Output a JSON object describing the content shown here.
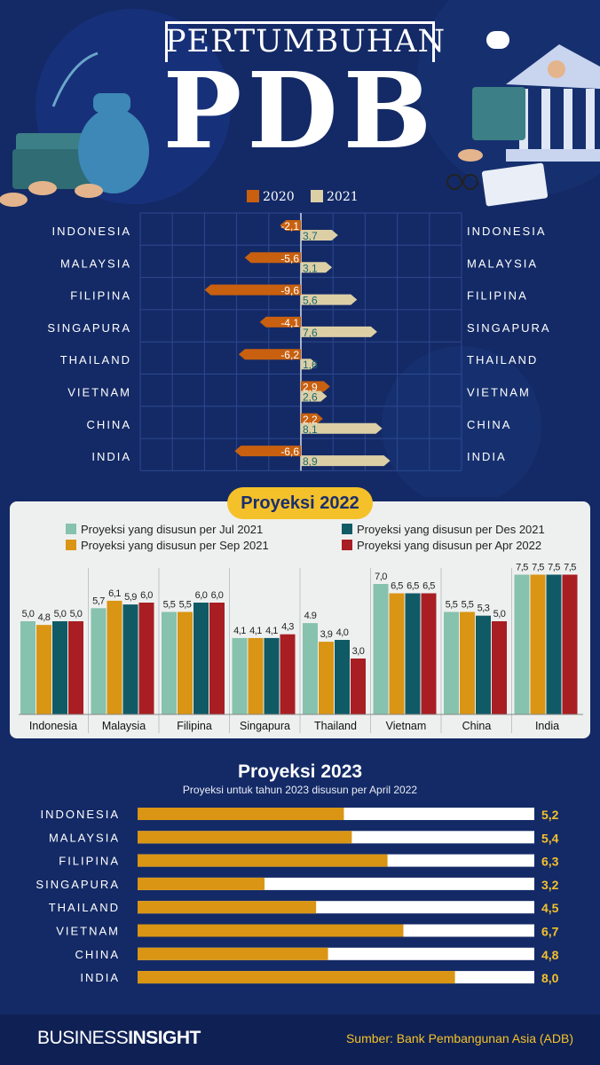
{
  "header": {
    "title_top": "PERTUMBUHAN",
    "title_big": "PDB"
  },
  "chart_data": [
    {
      "type": "bar",
      "orientation": "horizontal",
      "categories": [
        "INDONESIA",
        "MALAYSIA",
        "FILIPINA",
        "SINGAPURA",
        "THAILAND",
        "VIETNAM",
        "CHINA",
        "INDIA"
      ],
      "series": [
        {
          "name": "2020",
          "color": "#c8600f",
          "values": [
            -2.1,
            -5.6,
            -9.6,
            -4.1,
            -6.2,
            2.9,
            2.2,
            -6.6
          ],
          "labels": [
            "-2,1",
            "-5,6",
            "-9,6",
            "-4,1",
            "-6,2",
            "2,9",
            "2,2",
            "-6,6"
          ]
        },
        {
          "name": "2021",
          "color": "#dccfa6",
          "values": [
            3.7,
            3.1,
            5.6,
            7.6,
            1.6,
            2.6,
            8.1,
            8.9
          ],
          "labels": [
            "3,7",
            "3,1",
            "5,6",
            "7,6",
            "1,6",
            "2,6",
            "8,1",
            "8,9"
          ]
        }
      ]
    },
    {
      "type": "bar",
      "title": "Proyeksi 2022",
      "categories": [
        "Indonesia",
        "Malaysia",
        "Filipina",
        "Singapura",
        "Thailand",
        "Vietnam",
        "China",
        "India"
      ],
      "series": [
        {
          "name": "Proyeksi yang disusun per Jul 2021",
          "color": "#86c2ad",
          "values": [
            5.0,
            5.7,
            5.5,
            4.1,
            4.9,
            7.0,
            5.5,
            7.5
          ],
          "labels": [
            "5,0",
            "5,7",
            "5,5",
            "4,1",
            "4.9",
            "7,0",
            "5,5",
            "7,5"
          ]
        },
        {
          "name": "Proyeksi yang disusun per Sep 2021",
          "color": "#d99513",
          "values": [
            4.8,
            6.1,
            5.5,
            4.1,
            3.9,
            6.5,
            5.5,
            7.5
          ],
          "labels": [
            "4,8",
            "6,1",
            "5,5",
            "4,1",
            "3,9",
            "6,5",
            "5,5",
            "7,5"
          ]
        },
        {
          "name": "Proyeksi yang disusun per Des 2021",
          "color": "#105a66",
          "values": [
            5.0,
            5.9,
            6.0,
            4.1,
            4.0,
            6.5,
            5.3,
            7.5
          ],
          "labels": [
            "5,0",
            "5,9",
            "6,0",
            "4,1",
            "4,0",
            "6,5",
            "5,3",
            "7,5"
          ]
        },
        {
          "name": "Proyeksi yang disusun per Apr 2022",
          "color": "#a81e22",
          "values": [
            5.0,
            6.0,
            6.0,
            4.3,
            3.0,
            6.5,
            5.0,
            7.5
          ],
          "labels": [
            "5,0",
            "6,0",
            "6,0",
            "4,3",
            "3,0",
            "6,5",
            "5,0",
            "7,5"
          ]
        }
      ]
    },
    {
      "type": "bar",
      "orientation": "horizontal",
      "title": "Proyeksi 2023",
      "subtitle": "Proyeksi untuk tahun 2023 disusun per April 2022",
      "categories": [
        "INDONESIA",
        "MALAYSIA",
        "FILIPINA",
        "SINGAPURA",
        "THAILAND",
        "VIETNAM",
        "CHINA",
        "INDIA"
      ],
      "values": [
        5.2,
        5.4,
        6.3,
        3.2,
        4.5,
        6.7,
        4.8,
        8.0
      ],
      "labels": [
        "5,2",
        "5,4",
        "6,3",
        "3,2",
        "4,5",
        "6,7",
        "4,8",
        "8,0"
      ],
      "color": "#d99513"
    }
  ],
  "footer": {
    "brand_light": "BUSINESS",
    "brand_bold": "INSIGHT",
    "source": "Sumber: Bank Pembangunan Asia (ADB)"
  }
}
